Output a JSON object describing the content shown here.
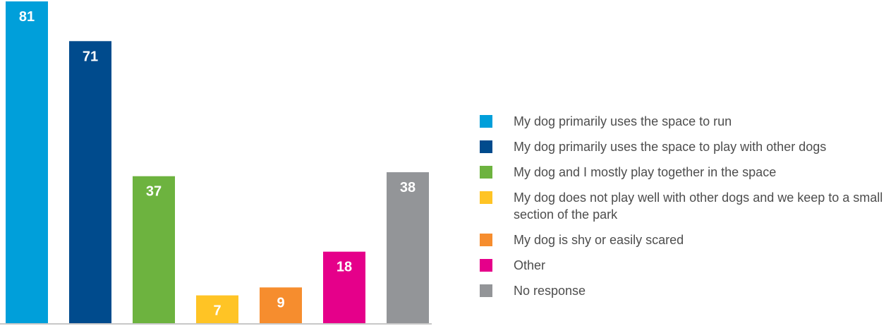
{
  "chart_data": {
    "type": "bar",
    "title": "",
    "xlabel": "",
    "ylabel": "",
    "ylim": [
      0,
      81
    ],
    "grid": false,
    "legend_position": "right",
    "categories": [
      "My dog primarily uses the space to run",
      "My dog primarily uses the space to play with other dogs",
      "My dog and I mostly play together in the space",
      "My dog does not play well with other dogs and we keep to a small section of the park",
      "My dog is shy or easily scared",
      "Other",
      "No response"
    ],
    "values": [
      81,
      71,
      37,
      7,
      9,
      18,
      38
    ],
    "colors": [
      "#009fda",
      "#004b8d",
      "#6db33f",
      "#ffc425",
      "#f68d2e",
      "#e5008a",
      "#939598"
    ],
    "data_labels": [
      "81",
      "71",
      "37",
      "7",
      "9",
      "18",
      "38"
    ]
  }
}
